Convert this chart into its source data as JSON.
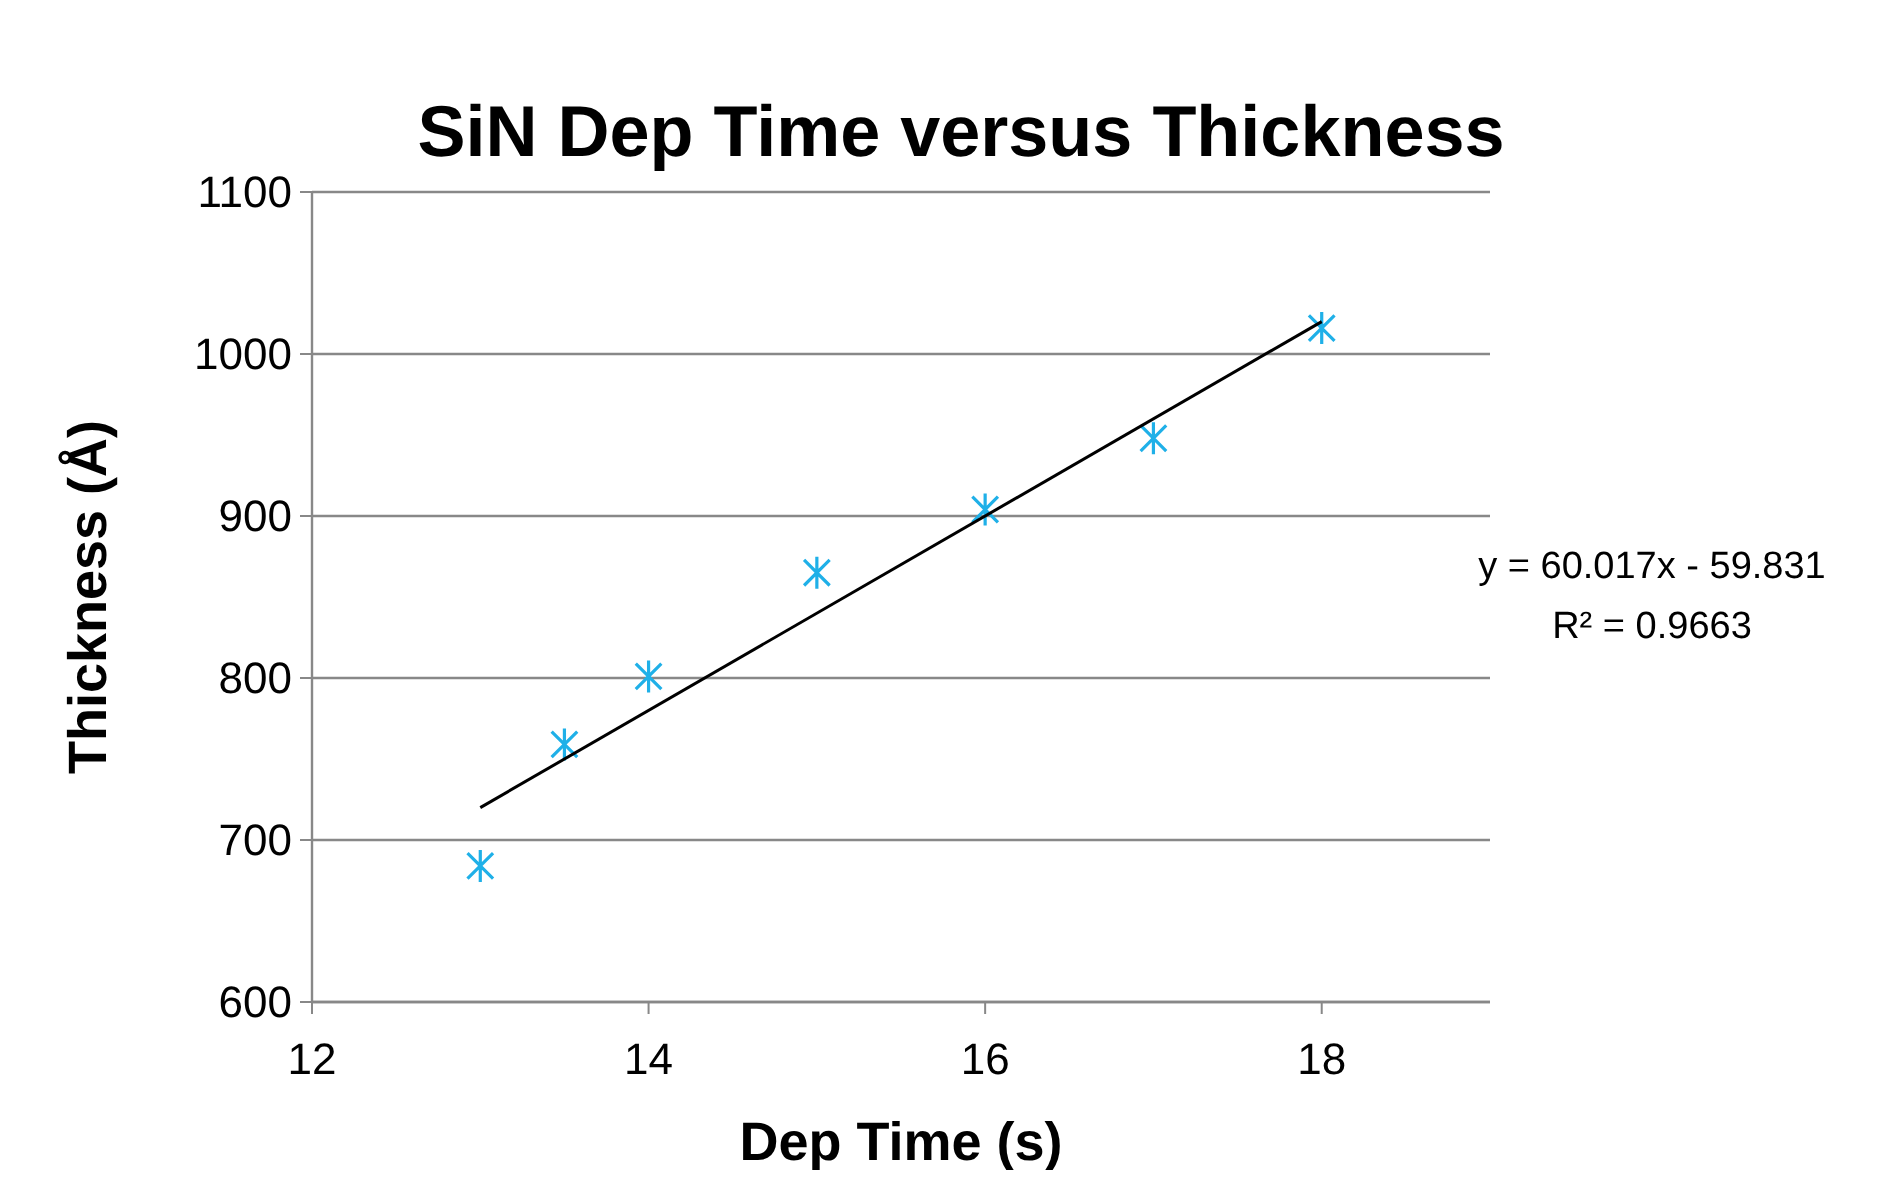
{
  "chart_data": {
    "type": "scatter",
    "title": "SiN Dep Time versus Thickness",
    "xlabel": "Dep Time (s)",
    "ylabel": "Thickness (Å)",
    "series": [
      {
        "type": "scatter",
        "color": "#1fb0e8",
        "x": [
          13,
          13.5,
          14,
          15,
          16,
          17,
          18
        ],
        "values": [
          684,
          759,
          801,
          865,
          904,
          948,
          1016
        ]
      },
      {
        "type": "line",
        "marker": "none",
        "color": "#000000",
        "x": [
          13,
          18
        ],
        "values": [
          720,
          1020
        ]
      }
    ],
    "xlim": [
      12,
      19
    ],
    "xticks": [
      12,
      14,
      16,
      18
    ],
    "ylim": [
      600,
      1100
    ],
    "yticks": [
      600,
      700,
      800,
      900,
      1000,
      1100
    ],
    "grid": "y",
    "marker": "cross",
    "line_style": "solid",
    "annotations": [
      "y = 60.017x - 59.831",
      "R² = 0.9663"
    ]
  }
}
